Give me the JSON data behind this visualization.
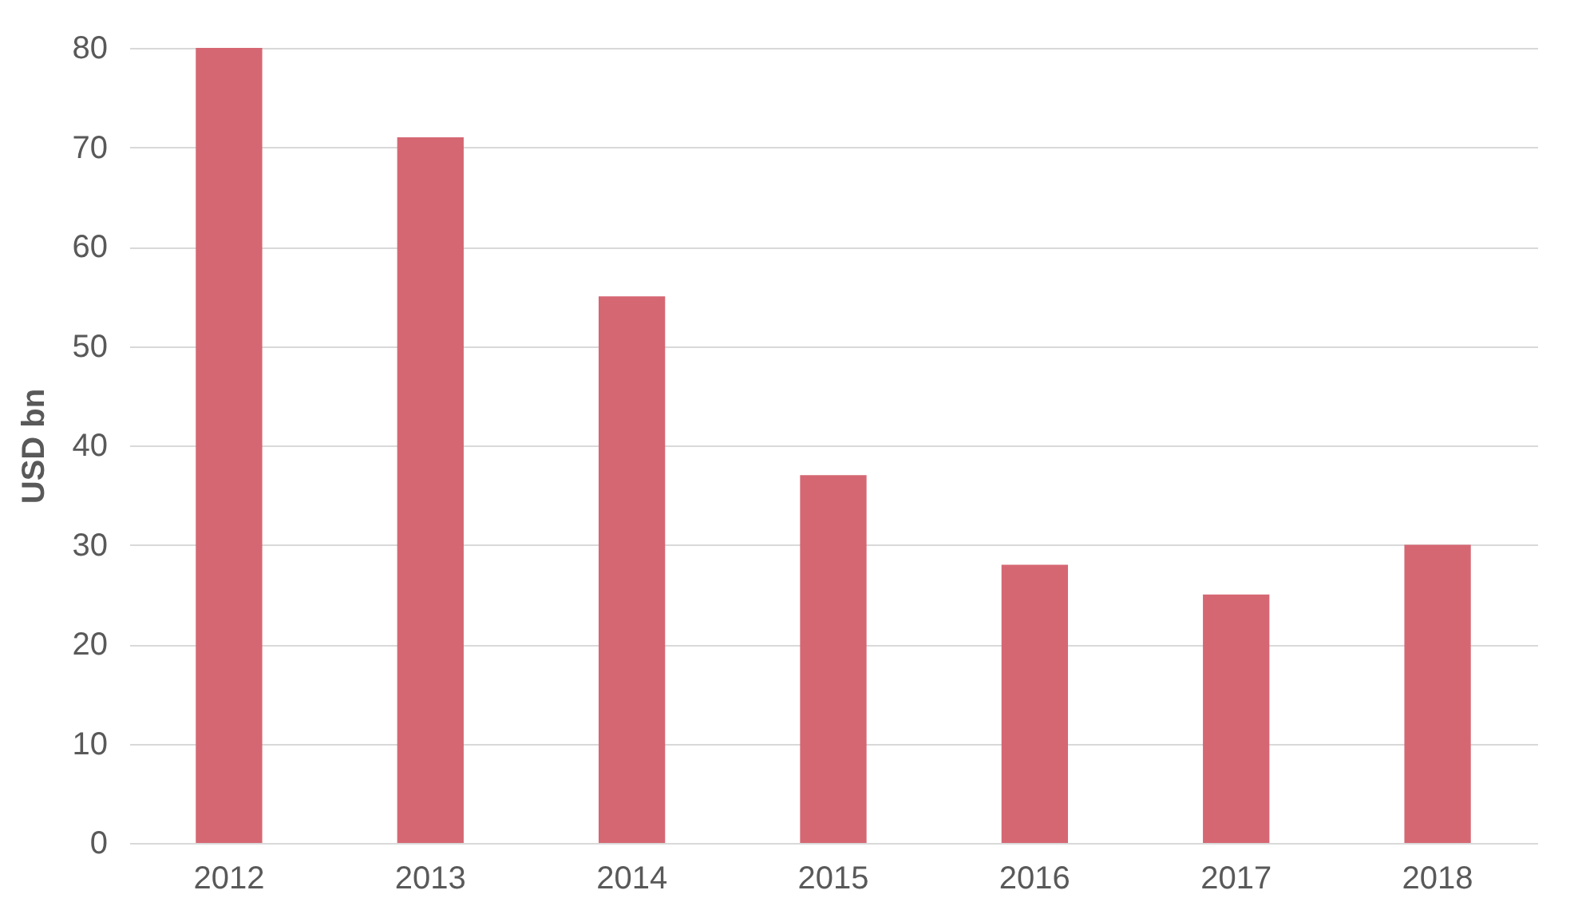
{
  "chart_data": {
    "type": "bar",
    "ylabel": "USD bn",
    "categories": [
      "2012",
      "2013",
      "2014",
      "2015",
      "2016",
      "2017",
      "2018"
    ],
    "values": [
      80,
      71,
      55,
      37,
      28,
      25,
      30
    ],
    "color": "#d56773",
    "ylim": [
      0,
      80
    ],
    "yticks": [
      0,
      10,
      20,
      30,
      40,
      50,
      60,
      70,
      80
    ],
    "grid": "y"
  }
}
